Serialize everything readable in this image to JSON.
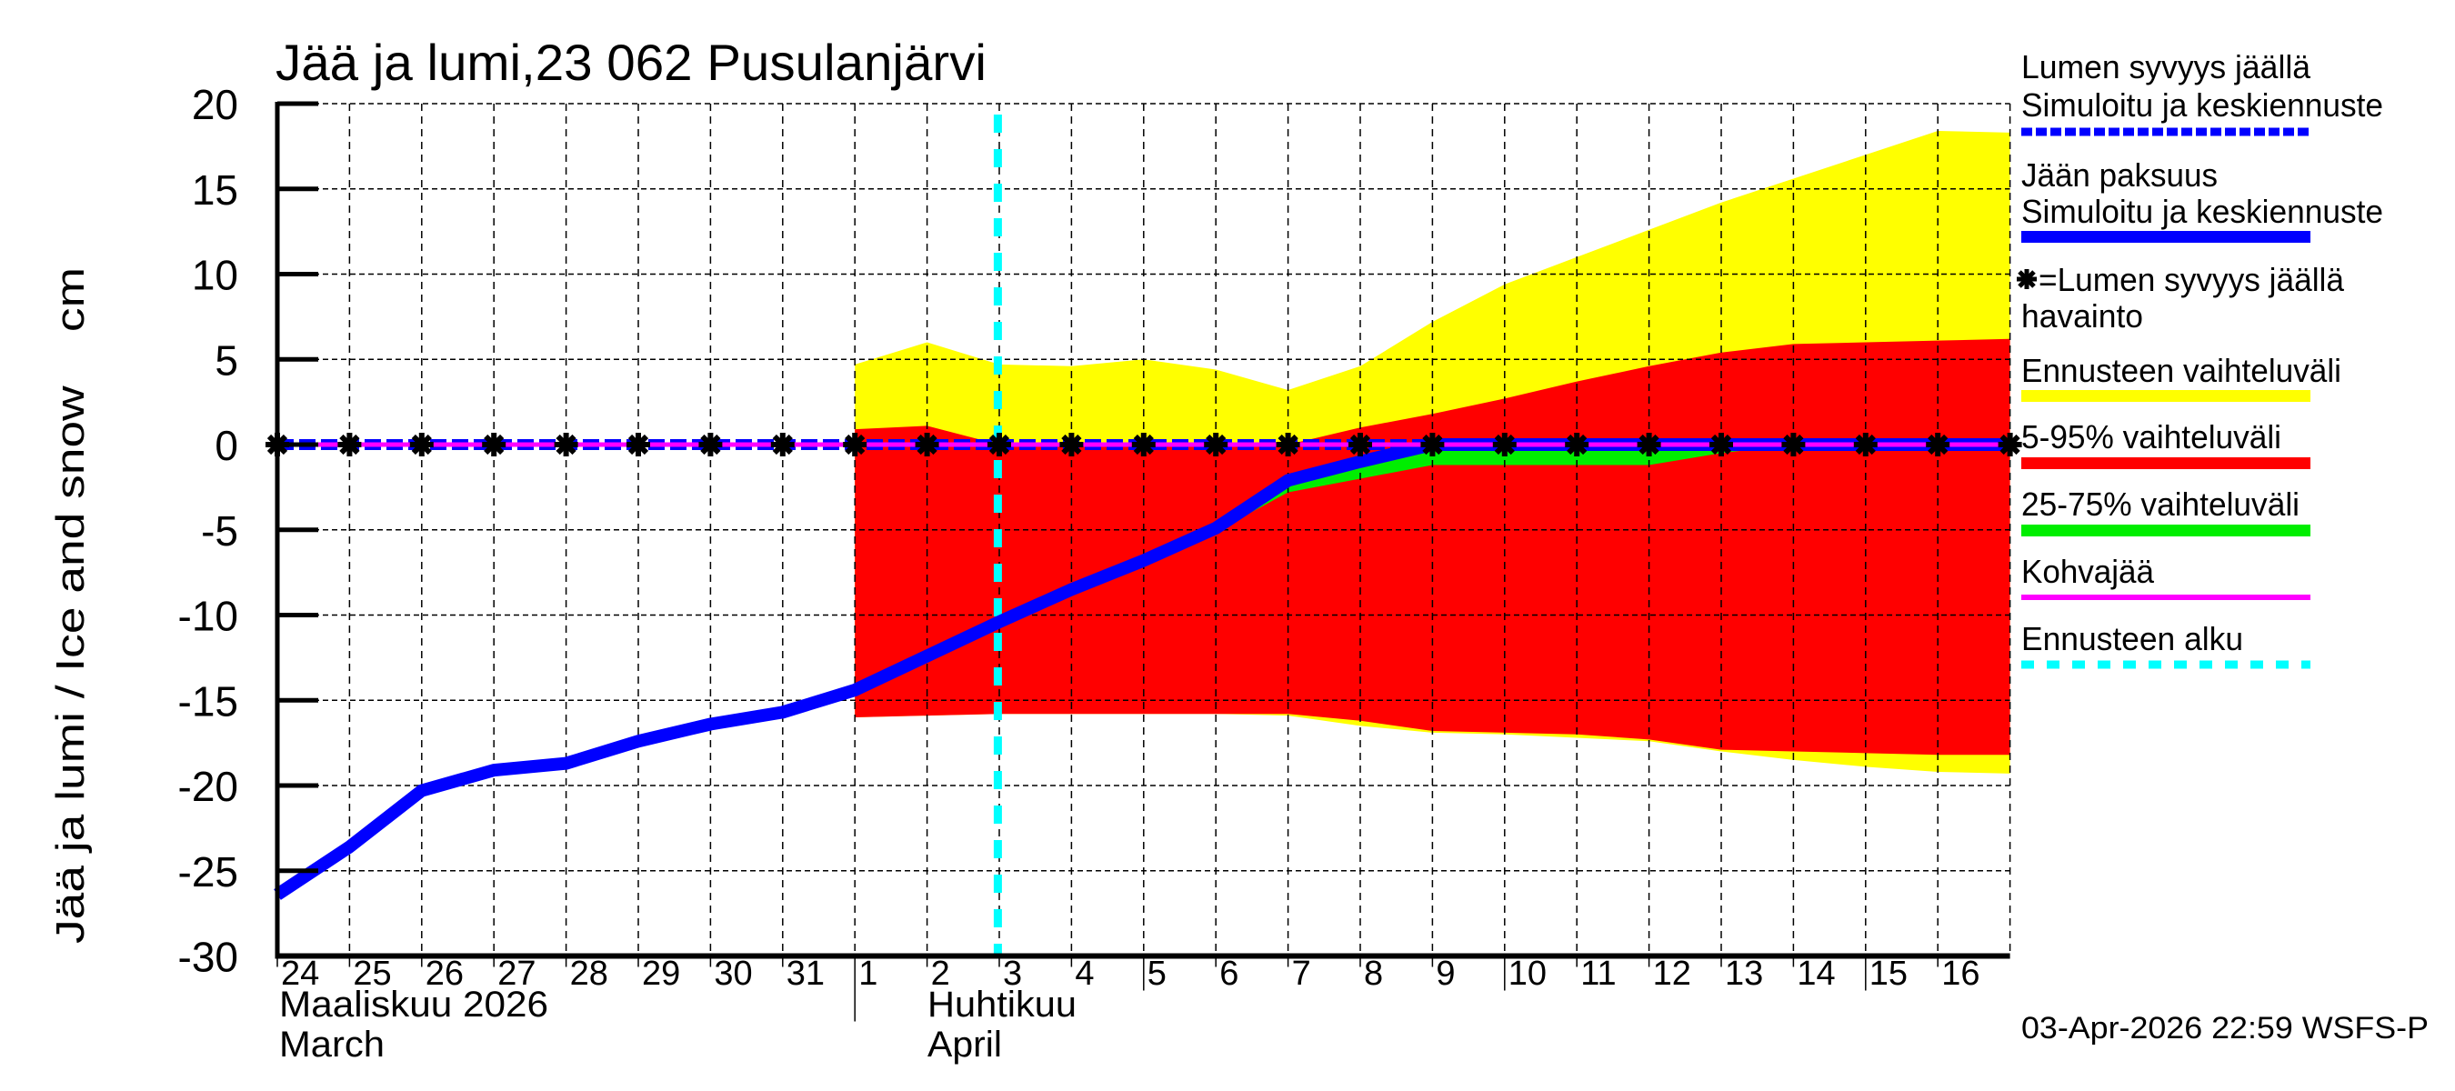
{
  "title": "Jää ja lumi,23 062 Pusulanjärvi",
  "y_axis_label": "Jää ja lumi / Ice and snow    cm",
  "x_axis": {
    "day_labels": [
      "24",
      "25",
      "26",
      "27",
      "28",
      "29",
      "30",
      "31",
      "1",
      "2",
      "3",
      "4",
      "5",
      "6",
      "7",
      "8",
      "9",
      "10",
      "11",
      "12",
      "13",
      "14",
      "15",
      "16"
    ],
    "month1_fi": "Maaliskuu 2026",
    "month1_en": "March",
    "month2_fi": "Huhtikuu",
    "month2_en": "April"
  },
  "timestamp": "03-Apr-2026 22:59 WSFS-P",
  "legend": {
    "snow_sim_line1": "Lumen syvyys jäällä",
    "snow_sim_line2": "Simuloitu ja keskiennuste",
    "ice_line1": "Jään paksuus",
    "ice_line2": "Simuloitu ja keskiennuste",
    "snow_obs_line1": "=Lumen syvyys jäällä",
    "snow_obs_line2": "havainto",
    "range_full": "Ennusteen vaihteluväli",
    "range_5_95": "5-95% vaihteluväli",
    "range_25_75": "25-75% vaihteluväli",
    "slush_ice": "Kohvajää",
    "forecast_start": "Ennusteen alku"
  },
  "colors": {
    "ice": "#0000ff",
    "snow_sim": "#0000ff",
    "range_full": "#ffff00",
    "range_5_95": "#ff0000",
    "range_25_75": "#00ee00",
    "slush_ice": "#ff00ff",
    "forecast_start": "#00ffff",
    "observation": "#000000"
  },
  "chart_data": {
    "type": "area",
    "title": "Jää ja lumi,23 062 Pusulanjärvi",
    "xlabel": "Maaliskuu 2026 / March — Huhtikuu / April",
    "ylabel": "Jää ja lumi / Ice and snow cm",
    "ylim": [
      -30,
      20
    ],
    "yticks": [
      20,
      15,
      10,
      5,
      0,
      -5,
      -10,
      -15,
      -20,
      -25,
      -30
    ],
    "grid": true,
    "legend_position": "right",
    "x": [
      "2026-03-24",
      "2026-03-25",
      "2026-03-26",
      "2026-03-27",
      "2026-03-28",
      "2026-03-29",
      "2026-03-30",
      "2026-03-31",
      "2026-04-01",
      "2026-04-02",
      "2026-04-03",
      "2026-04-04",
      "2026-04-05",
      "2026-04-06",
      "2026-04-07",
      "2026-04-08",
      "2026-04-09",
      "2026-04-10",
      "2026-04-11",
      "2026-04-12",
      "2026-04-13",
      "2026-04-14",
      "2026-04-15",
      "2026-04-16",
      "2026-04-17"
    ],
    "forecast_start_index": 9.98,
    "series": [
      {
        "name": "Jään paksuus – Simuloitu ja keskiennuste",
        "kind": "line",
        "values": [
          -26.4,
          -23.6,
          -20.3,
          -19.1,
          -18.7,
          -17.4,
          -16.4,
          -15.7,
          -14.4,
          -12.4,
          -10.4,
          -8.5,
          -6.8,
          -4.9,
          -2.1,
          -1.0,
          0,
          0,
          0,
          0,
          0,
          0,
          0,
          0,
          0
        ]
      },
      {
        "name": "Lumen syvyys jäällä – Simuloitu ja keskiennuste",
        "kind": "dashed-line",
        "values": [
          0,
          0,
          0,
          0,
          0,
          0,
          0,
          0,
          0,
          0,
          0,
          0,
          0,
          0,
          0,
          0,
          0,
          0,
          0,
          0,
          0,
          0,
          0,
          0,
          0
        ]
      },
      {
        "name": "Lumen syvyys jäällä – havainto",
        "kind": "markers",
        "values": [
          0,
          0,
          0,
          0,
          0,
          0,
          0,
          0,
          0,
          0,
          0,
          0,
          0,
          0,
          0,
          0,
          0,
          0,
          0,
          0,
          0,
          0,
          0,
          0,
          0
        ]
      },
      {
        "name": "Kohvajää",
        "kind": "line",
        "values": [
          0,
          0,
          0,
          0,
          0,
          0,
          0,
          0,
          0,
          0,
          0,
          0,
          0,
          0,
          0,
          0,
          0,
          0,
          0,
          0,
          0,
          0,
          0,
          0,
          0
        ]
      },
      {
        "name": "Ennusteen vaihteluväli",
        "kind": "band",
        "start_index": 8,
        "upper": [
          4.7,
          6.0,
          4.7,
          4.6,
          5.0,
          4.4,
          3.2,
          4.6,
          7.2,
          9.4,
          11.0,
          12.6,
          14.2,
          15.6,
          17.0,
          18.4,
          18.3
        ],
        "lower": [
          -16.0,
          -15.9,
          -15.8,
          -15.8,
          -15.8,
          -15.8,
          -15.9,
          -16.5,
          -16.9,
          -17.0,
          -17.2,
          -17.4,
          -18.0,
          -18.5,
          -18.9,
          -19.2,
          -19.3
        ]
      },
      {
        "name": "5-95% vaihteluväli",
        "kind": "band",
        "start_index": 8,
        "upper": [
          0.9,
          1.1,
          0,
          0,
          0,
          0,
          0,
          1.0,
          1.8,
          2.7,
          3.7,
          4.6,
          5.4,
          5.9,
          6.0,
          6.1,
          6.2
        ],
        "lower": [
          -16.0,
          -15.9,
          -15.8,
          -15.8,
          -15.8,
          -15.8,
          -15.8,
          -16.2,
          -16.8,
          -16.9,
          -17.0,
          -17.3,
          -17.9,
          -18.0,
          -18.1,
          -18.2,
          -18.2
        ]
      },
      {
        "name": "25-75% vaihteluväli",
        "kind": "band",
        "start_index": 8,
        "upper": [
          -14.4,
          -12.4,
          -10.4,
          -8.5,
          -6.8,
          -4.9,
          -1.9,
          -0.6,
          0,
          0,
          0,
          0,
          0,
          0,
          0,
          0,
          0
        ],
        "lower": [
          -14.4,
          -12.4,
          -10.4,
          -8.5,
          -6.8,
          -5.1,
          -2.8,
          -2.0,
          -1.2,
          -1.2,
          -1.2,
          -1.2,
          -0.5,
          0,
          0,
          0,
          0
        ]
      }
    ]
  }
}
